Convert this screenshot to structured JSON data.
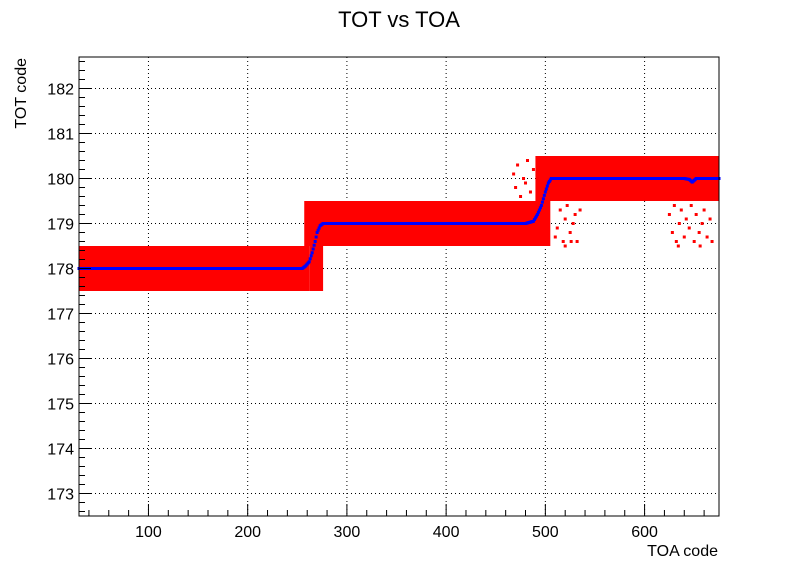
{
  "chart_data": {
    "type": "scatter",
    "title": "TOT vs TOA",
    "xlabel": "TOA code",
    "ylabel": "TOT code",
    "xlim": [
      30,
      675
    ],
    "ylim": [
      172.5,
      182.7
    ],
    "x_ticks": [
      100,
      200,
      300,
      400,
      500,
      600
    ],
    "y_ticks": [
      173,
      174,
      175,
      176,
      177,
      178,
      179,
      180,
      181,
      182
    ],
    "grid": true,
    "colors": {
      "raw": "#ff0000",
      "profile": "#0000ff"
    },
    "series": [
      {
        "kind": "band",
        "color": "#ff0000",
        "bands": [
          {
            "x": [
              30,
              262
            ],
            "y": [
              177.5,
              178.5
            ]
          },
          {
            "x": [
              262,
              276
            ],
            "y": [
              177.5,
              179.5
            ]
          },
          {
            "x": [
              257,
              505
            ],
            "y": [
              178.5,
              179.5
            ]
          },
          {
            "x": [
              490,
              675
            ],
            "y": [
              179.5,
              180.5
            ]
          }
        ],
        "scatter": [
          [
            468,
            180.1
          ],
          [
            470,
            179.8
          ],
          [
            472,
            180.3
          ],
          [
            475,
            179.6
          ],
          [
            478,
            180.0
          ],
          [
            480,
            179.9
          ],
          [
            482,
            180.4
          ],
          [
            485,
            179.7
          ],
          [
            488,
            180.2
          ],
          [
            492,
            179.6
          ],
          [
            495,
            180.1
          ],
          [
            498,
            179.8
          ],
          [
            510,
            178.7
          ],
          [
            512,
            178.9
          ],
          [
            515,
            179.3
          ],
          [
            518,
            178.6
          ],
          [
            520,
            179.1
          ],
          [
            522,
            179.4
          ],
          [
            525,
            178.8
          ],
          [
            528,
            179.0
          ],
          [
            530,
            179.2
          ],
          [
            532,
            178.6
          ],
          [
            535,
            179.3
          ],
          [
            520,
            178.5
          ],
          [
            526,
            178.6
          ],
          [
            625,
            179.2
          ],
          [
            628,
            178.8
          ],
          [
            630,
            179.4
          ],
          [
            632,
            178.6
          ],
          [
            635,
            179.0
          ],
          [
            637,
            179.3
          ],
          [
            640,
            178.7
          ],
          [
            642,
            179.1
          ],
          [
            645,
            178.9
          ],
          [
            647,
            179.4
          ],
          [
            650,
            178.6
          ],
          [
            652,
            179.2
          ],
          [
            655,
            178.8
          ],
          [
            658,
            179.0
          ],
          [
            660,
            179.3
          ],
          [
            663,
            178.7
          ],
          [
            666,
            179.1
          ],
          [
            668,
            178.6
          ],
          [
            634,
            178.5
          ],
          [
            656,
            178.5
          ]
        ]
      },
      {
        "kind": "profile",
        "color": "#0000ff",
        "x": [
          30,
          255,
          258,
          262,
          265,
          268,
          270,
          273,
          276,
          280,
          480,
          488,
          492,
          496,
          500,
          503,
          506,
          510,
          640,
          645,
          648,
          652,
          675
        ],
        "y": [
          178.0,
          178.0,
          178.05,
          178.15,
          178.35,
          178.6,
          178.8,
          178.95,
          179.0,
          179.0,
          179.0,
          179.05,
          179.2,
          179.4,
          179.7,
          179.9,
          180.0,
          180.0,
          180.0,
          179.98,
          179.92,
          180.0,
          180.0
        ]
      }
    ]
  }
}
